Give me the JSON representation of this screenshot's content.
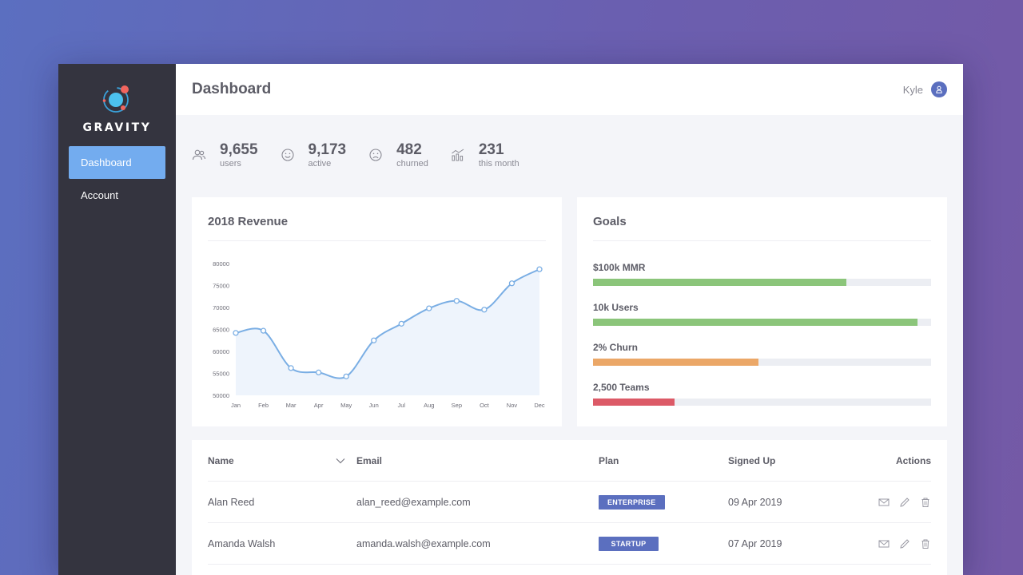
{
  "app": {
    "name": "GRAVITY"
  },
  "sidebar": {
    "items": [
      {
        "label": "Dashboard",
        "active": true
      },
      {
        "label": "Account",
        "active": false
      }
    ]
  },
  "header": {
    "title": "Dashboard",
    "user_name": "Kyle",
    "avatar_icon": "user-icon"
  },
  "stats": [
    {
      "value": "9,655",
      "label": "users",
      "icon": "users-icon"
    },
    {
      "value": "9,173",
      "label": "active",
      "icon": "smile-icon"
    },
    {
      "value": "482",
      "label": "churned",
      "icon": "frown-icon"
    },
    {
      "value": "231",
      "label": "this month",
      "icon": "growth-chart-icon"
    }
  ],
  "revenue": {
    "title": "2018 Revenue"
  },
  "chart_data": {
    "type": "line",
    "categories": [
      "Jan",
      "Feb",
      "Mar",
      "Apr",
      "May",
      "Jun",
      "Jul",
      "Aug",
      "Sep",
      "Oct",
      "Nov",
      "Dec"
    ],
    "values": [
      64200,
      64700,
      56200,
      55200,
      54300,
      62500,
      66300,
      69800,
      71500,
      69500,
      75500,
      78700
    ],
    "title": "2018 Revenue",
    "xlabel": "",
    "ylabel": "",
    "ylim": [
      50000,
      80000
    ],
    "yticks": [
      80000,
      75000,
      70000,
      65000,
      60000,
      55000,
      50000
    ],
    "color": "#7aaee4",
    "fill": "#eef4fc"
  },
  "goals": {
    "title": "Goals",
    "items": [
      {
        "label": "$100k MMR",
        "progress": 0.75,
        "color": "#8bc57a"
      },
      {
        "label": "10k Users",
        "progress": 0.96,
        "color": "#8bc57a"
      },
      {
        "label": "2% Churn",
        "progress": 0.49,
        "color": "#eba767"
      },
      {
        "label": "2,500 Teams",
        "progress": 0.24,
        "color": "#dc5a67"
      }
    ]
  },
  "table": {
    "headers": {
      "name": "Name",
      "email": "Email",
      "plan": "Plan",
      "signed_up": "Signed Up",
      "actions": "Actions"
    },
    "rows": [
      {
        "name": "Alan Reed",
        "email": "alan_reed@example.com",
        "plan": "ENTERPRISE",
        "signed_up": "09 Apr 2019"
      },
      {
        "name": "Amanda Walsh",
        "email": "amanda.walsh@example.com",
        "plan": "STARTUP",
        "signed_up": "07 Apr 2019"
      }
    ]
  },
  "colors": {
    "accent": "#73acef",
    "sidebar": "#34343f",
    "badge": "#5b6fbf"
  }
}
